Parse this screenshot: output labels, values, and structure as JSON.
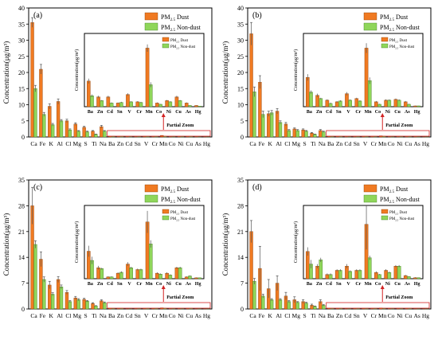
{
  "figure": {
    "ylabel": "Concentration(μg/m³)",
    "legend": {
      "dust": "PM2.5 Dust",
      "nondust": "PM2.5 Non-dust"
    },
    "zoom_label": "Partial Zoom",
    "colors": {
      "dust": "#f07a22",
      "nondust": "#8fd65a",
      "zoom_box": "#d22222"
    }
  },
  "chart_data": [
    {
      "panel": "(a)",
      "type": "bar",
      "categories": [
        "Ca",
        "Fe",
        "K",
        "Al",
        "Cl",
        "Mg",
        "S",
        "Ti",
        "Na",
        "Ba",
        "Zn",
        "Cd",
        "Sn",
        "V",
        "Cr",
        "Mn",
        "Co",
        "Ni",
        "Cu",
        "As",
        "Hg"
      ],
      "series": [
        {
          "name": "PM2.5 Dust",
          "values": [
            35.5,
            21.0,
            9.5,
            11.0,
            5.0,
            4.0,
            3.0,
            1.8,
            3.2,
            0.21,
            0.08,
            0.08,
            0.03,
            0.1,
            0.04,
            0.48,
            0.03,
            0.05,
            0.08,
            0.03,
            0.01
          ],
          "err": [
            1.5,
            1.5,
            0.8,
            0.8,
            0.5,
            0.4,
            0.3,
            0.2,
            0.4,
            0.02,
            0.01,
            0.01,
            0.005,
            0.01,
            0.005,
            0.03,
            0.005,
            0.005,
            0.01,
            0.005,
            0.002
          ]
        },
        {
          "name": "PM2.5 Non-dust",
          "values": [
            15.0,
            7.0,
            3.8,
            5.0,
            2.2,
            1.8,
            1.6,
            0.8,
            1.8,
            0.09,
            0.05,
            0.03,
            0.035,
            0.04,
            0.035,
            0.18,
            0.02,
            0.04,
            0.05,
            0.01,
            0.005
          ],
          "err": [
            1.0,
            0.6,
            0.4,
            0.4,
            0.3,
            0.2,
            0.2,
            0.1,
            0.2,
            0.01,
            0.005,
            0.005,
            0.005,
            0.005,
            0.005,
            0.02,
            0.003,
            0.005,
            0.005,
            0.002,
            0.001
          ]
        }
      ],
      "ylim": [
        0,
        40
      ],
      "yticks": [
        0,
        5,
        10,
        15,
        20,
        25,
        30,
        35,
        40
      ],
      "inset": {
        "ylim": [
          0,
          0.6
        ],
        "categories": [
          "Ba",
          "Zn",
          "Cd",
          "Sn",
          "V",
          "Cr",
          "Mn",
          "Co",
          "Ni",
          "Cu",
          "As",
          "Hg"
        ]
      }
    },
    {
      "panel": "(b)",
      "type": "bar",
      "categories": [
        "Ca",
        "Fe",
        "K",
        "Al",
        "Cl",
        "Mg",
        "S",
        "Ti",
        "Na",
        "Ba",
        "Zn",
        "Cd",
        "Sn",
        "V",
        "Cr",
        "Mn",
        "Co",
        "Ni",
        "Cu",
        "As",
        "Hg"
      ],
      "series": [
        {
          "name": "PM2.5 Dust",
          "values": [
            32.0,
            17.0,
            7.2,
            8.0,
            4.0,
            2.5,
            2.2,
            1.2,
            2.0,
            0.18,
            0.07,
            0.04,
            0.03,
            0.08,
            0.05,
            0.36,
            0.03,
            0.04,
            0.045,
            0.03,
            0.005
          ],
          "err": [
            3.5,
            2.0,
            0.8,
            0.8,
            0.5,
            0.3,
            0.3,
            0.2,
            0.3,
            0.02,
            0.01,
            0.005,
            0.005,
            0.01,
            0.005,
            0.03,
            0.005,
            0.005,
            0.005,
            0.005,
            0.002
          ]
        },
        {
          "name": "PM2.5 Non-dust",
          "values": [
            14.0,
            7.0,
            7.5,
            4.5,
            2.0,
            2.0,
            1.8,
            0.8,
            1.6,
            0.09,
            0.05,
            0.02,
            0.035,
            0.04,
            0.035,
            0.16,
            0.015,
            0.04,
            0.04,
            0.015,
            0.005
          ],
          "err": [
            1.5,
            1.0,
            0.7,
            0.5,
            0.3,
            0.3,
            0.2,
            0.1,
            0.2,
            0.01,
            0.005,
            0.005,
            0.005,
            0.005,
            0.005,
            0.02,
            0.003,
            0.005,
            0.005,
            0.003,
            0.001
          ]
        }
      ],
      "ylim": [
        0,
        40
      ],
      "yticks": [
        0,
        5,
        10,
        15,
        20,
        25,
        30,
        35,
        40
      ],
      "inset": {
        "ylim": [
          0,
          0.45
        ],
        "categories": [
          "Ba",
          "Zn",
          "Cd",
          "Sn",
          "V",
          "Cr",
          "Mn",
          "Co",
          "Ni",
          "Cu",
          "As",
          "Hg"
        ]
      }
    },
    {
      "panel": "(c)",
      "type": "bar",
      "categories": [
        "Ca",
        "Fe",
        "K",
        "Al",
        "Cl",
        "Mg",
        "S",
        "Ti",
        "Na",
        "Ba",
        "Zn",
        "Cd",
        "Sn",
        "V",
        "Cr",
        "Mn",
        "Co",
        "Ni",
        "Cu",
        "As",
        "Hg"
      ],
      "series": [
        {
          "name": "PM2.5 Dust",
          "values": [
            28.0,
            13.5,
            6.5,
            8.0,
            4.5,
            3.0,
            2.6,
            1.5,
            2.2,
            0.15,
            0.06,
            0.01,
            0.03,
            0.08,
            0.05,
            0.31,
            0.03,
            0.03,
            0.06,
            0.01,
            0.005
          ],
          "err": [
            5.0,
            2.0,
            1.0,
            0.8,
            0.5,
            0.4,
            0.3,
            0.2,
            0.3,
            0.03,
            0.01,
            0.003,
            0.005,
            0.01,
            0.005,
            0.06,
            0.005,
            0.005,
            0.005,
            0.003,
            0.002
          ]
        },
        {
          "name": "PM2.5 Non-dust",
          "values": [
            17.5,
            8.0,
            4.0,
            6.0,
            2.0,
            2.5,
            2.1,
            0.8,
            1.7,
            0.1,
            0.055,
            0.01,
            0.035,
            0.06,
            0.05,
            0.19,
            0.025,
            0.02,
            0.06,
            0.015,
            0.005
          ],
          "err": [
            1.0,
            0.7,
            0.4,
            0.5,
            0.3,
            0.3,
            0.2,
            0.1,
            0.2,
            0.02,
            0.005,
            0.003,
            0.005,
            0.005,
            0.005,
            0.02,
            0.004,
            0.004,
            0.005,
            0.003,
            0.001
          ]
        }
      ],
      "ylim": [
        0,
        35
      ],
      "yticks": [
        0,
        7,
        14,
        21,
        28,
        35
      ],
      "inset": {
        "ylim": [
          0,
          0.4
        ],
        "categories": [
          "Ba",
          "Zn",
          "Cd",
          "Sn",
          "V",
          "Cr",
          "Mn",
          "Co",
          "Ni",
          "Cu",
          "As",
          "Hg"
        ]
      }
    },
    {
      "panel": "(d)",
      "type": "bar",
      "categories": [
        "Ca",
        "Fe",
        "K",
        "Al",
        "Cl",
        "Mg",
        "S",
        "Ti",
        "Na",
        "Ba",
        "Zn",
        "Cd",
        "Sn",
        "V",
        "Cr",
        "Mn",
        "Co",
        "Ni",
        "Cu",
        "As",
        "Hg"
      ],
      "series": [
        {
          "name": "PM2.5 Dust",
          "values": [
            21.0,
            11.0,
            5.5,
            7.0,
            3.5,
            2.5,
            2.0,
            1.0,
            2.0,
            0.13,
            0.06,
            0.02,
            0.04,
            0.06,
            0.04,
            0.26,
            0.03,
            0.04,
            0.06,
            0.015,
            0.005
          ],
          "err": [
            3.0,
            6.0,
            2.5,
            2.0,
            1.0,
            0.8,
            0.5,
            0.3,
            0.5,
            0.02,
            0.01,
            0.005,
            0.005,
            0.01,
            0.005,
            0.12,
            0.005,
            0.005,
            0.005,
            0.003,
            0.002
          ]
        },
        {
          "name": "PM2.5 Non-dust",
          "values": [
            7.5,
            3.5,
            2.5,
            2.5,
            2.0,
            1.8,
            1.6,
            0.7,
            1.0,
            0.07,
            0.09,
            0.02,
            0.04,
            0.035,
            0.04,
            0.1,
            0.02,
            0.03,
            0.06,
            0.01,
            0.005
          ],
          "err": [
            0.8,
            0.5,
            0.3,
            0.3,
            0.3,
            0.2,
            0.2,
            0.1,
            0.2,
            0.02,
            0.01,
            0.005,
            0.005,
            0.005,
            0.005,
            0.01,
            0.003,
            0.004,
            0.005,
            0.002,
            0.001
          ]
        }
      ],
      "ylim": [
        0,
        35
      ],
      "yticks": [
        0,
        7,
        14,
        21,
        28,
        35
      ],
      "inset": {
        "ylim": [
          0,
          0.35
        ],
        "categories": [
          "Ba",
          "Zn",
          "Cd",
          "Sn",
          "V",
          "Cr",
          "Mn",
          "Co",
          "Ni",
          "Cu",
          "As",
          "Hg"
        ]
      }
    }
  ]
}
